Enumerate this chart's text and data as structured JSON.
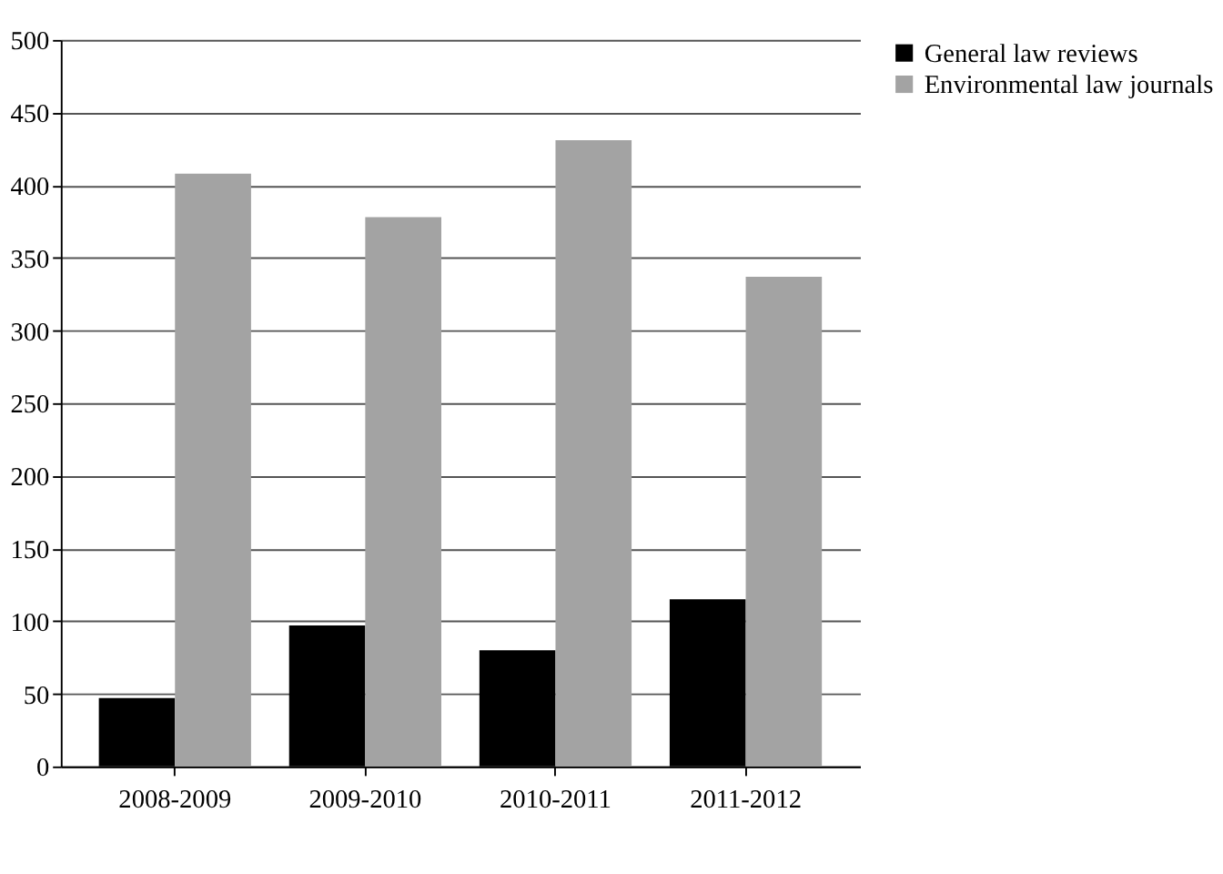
{
  "chart_data": {
    "type": "bar",
    "categories": [
      "2008-2009",
      "2009-2010",
      "2010-2011",
      "2011-2012"
    ],
    "series": [
      {
        "name": "General law reviews",
        "color": "#000000",
        "values": [
          47,
          97,
          80,
          115
        ]
      },
      {
        "name": "Environmental law journals",
        "color": "#a3a3a3",
        "values": [
          408,
          378,
          431,
          337
        ]
      }
    ],
    "ylim": [
      0,
      500
    ],
    "yticks": [
      0,
      50,
      100,
      150,
      200,
      250,
      300,
      350,
      400,
      450,
      500
    ],
    "grid": "y",
    "legend": "right"
  }
}
